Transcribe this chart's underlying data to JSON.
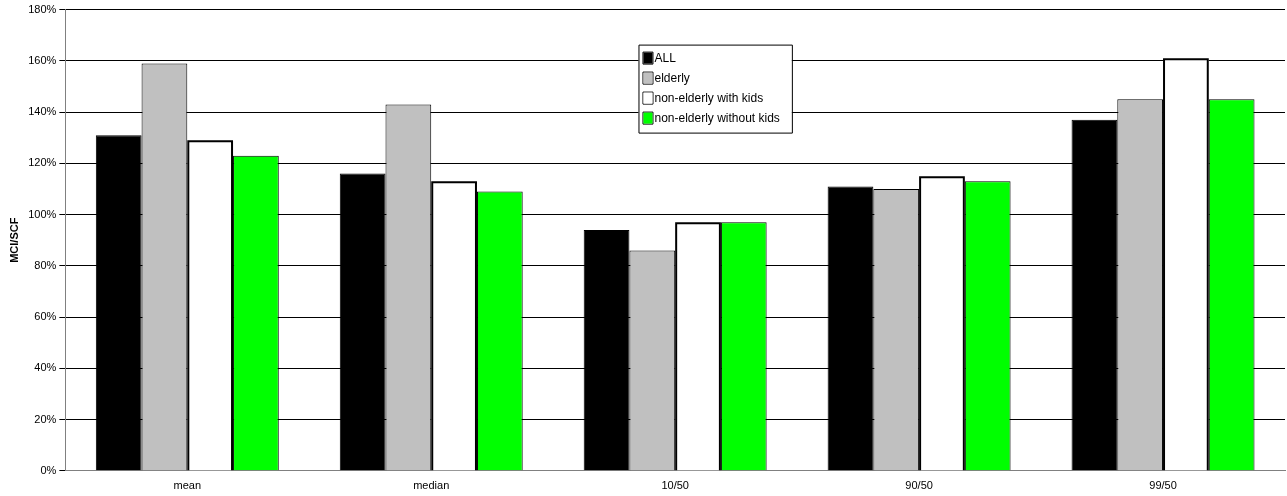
{
  "chart_data": {
    "type": "bar",
    "ylabel": "MCI/SCF",
    "categories": [
      "mean",
      "median",
      "10/50",
      "90/50",
      "99/50"
    ],
    "series": [
      {
        "name": "ALL",
        "color": "#000000",
        "values": [
          131,
          116,
          94,
          111,
          137
        ]
      },
      {
        "name": "elderly",
        "color": "#c0c0c0",
        "values": [
          159,
          143,
          86,
          110,
          145
        ]
      },
      {
        "name": "non-elderly with kids",
        "color": "#ffffff",
        "values": [
          129,
          113,
          97,
          115,
          161
        ]
      },
      {
        "name": "non-elderly without kids",
        "color": "#00ff00",
        "values": [
          123,
          109,
          97,
          113,
          145
        ]
      }
    ],
    "ylim": [
      0,
      180
    ],
    "yticks": [
      {
        "value": 0,
        "label": "0%"
      },
      {
        "value": 20,
        "label": "20%"
      },
      {
        "value": 40,
        "label": "40%"
      },
      {
        "value": 60,
        "label": "60%"
      },
      {
        "value": 80,
        "label": "80%"
      },
      {
        "value": 100,
        "label": "100%"
      },
      {
        "value": 120,
        "label": "120%"
      },
      {
        "value": 140,
        "label": "140%"
      },
      {
        "value": 160,
        "label": "160%"
      },
      {
        "value": 180,
        "label": "180%"
      }
    ],
    "grid": "y",
    "legend": "top"
  }
}
